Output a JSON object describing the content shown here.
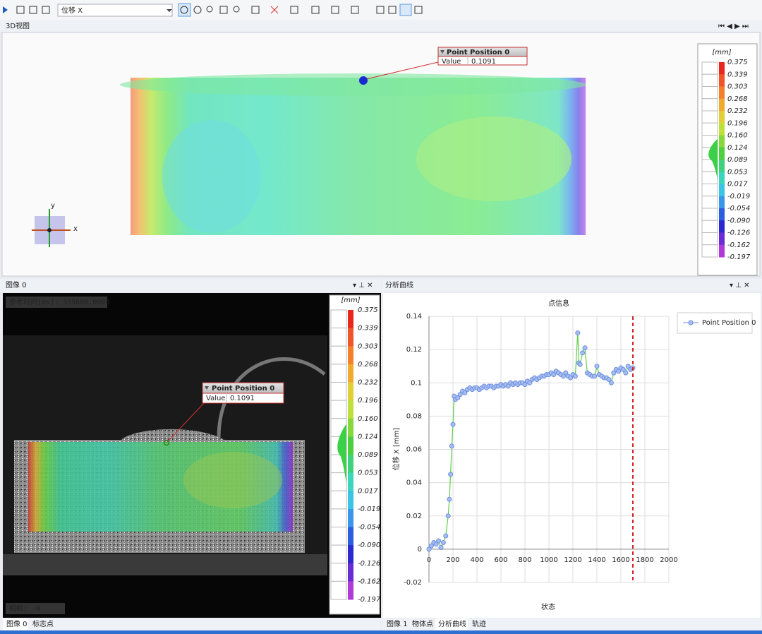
{
  "toolbar": {
    "dropdown": "位移 X"
  },
  "view3d": {
    "tab": "3D视图",
    "axes": {
      "x": "x",
      "y": "y"
    },
    "annotation": {
      "title": "Point Position 0",
      "key": "Value",
      "value": "0.1091"
    },
    "colorbar": {
      "unit": "[mm]",
      "labels": [
        "0.375",
        "0.339",
        "0.303",
        "0.268",
        "0.232",
        "0.196",
        "0.160",
        "0.124",
        "0.089",
        "0.053",
        "0.017",
        "-0.019",
        "-0.054",
        "-0.090",
        "-0.126",
        "-0.162",
        "-0.197"
      ]
    }
  },
  "image_panel": {
    "title": "图像 0",
    "ref_time": "参考时间[ms]: 339800.0000",
    "camera": "相机: -0",
    "annotation": {
      "title": "Point Position 0",
      "key": "Value",
      "value": "0.1091"
    },
    "colorbar": {
      "unit": "[mm]",
      "labels": [
        "0.375",
        "0.339",
        "0.303",
        "0.268",
        "0.232",
        "0.196",
        "0.160",
        "0.124",
        "0.089",
        "0.053",
        "0.017",
        "-0.019",
        "-0.054",
        "-0.090",
        "-0.126",
        "-0.162",
        "-0.197"
      ]
    },
    "tabs": [
      "图像 0",
      "标志点"
    ]
  },
  "curve_panel": {
    "title": "分析曲线",
    "tabs": [
      "图像 1",
      "物体点",
      "分析曲线",
      "轨迹"
    ]
  },
  "chart_data": {
    "type": "line",
    "title": "点信息",
    "x_label": "状态",
    "y_label": "位移 X [mm]",
    "x": [
      0,
      20,
      40,
      60,
      80,
      100,
      120,
      140,
      160,
      170,
      180,
      190,
      200,
      210,
      220,
      240,
      260,
      280,
      300,
      320,
      340,
      360,
      380,
      400,
      420,
      440,
      460,
      480,
      500,
      520,
      540,
      560,
      580,
      600,
      620,
      640,
      660,
      680,
      700,
      720,
      740,
      760,
      780,
      800,
      820,
      840,
      860,
      880,
      900,
      920,
      940,
      960,
      980,
      1000,
      1020,
      1040,
      1060,
      1080,
      1100,
      1120,
      1140,
      1160,
      1180,
      1200,
      1220,
      1240,
      1250,
      1260,
      1280,
      1300,
      1320,
      1340,
      1360,
      1380,
      1400,
      1420,
      1440,
      1460,
      1480,
      1500,
      1520,
      1540,
      1560,
      1580,
      1600,
      1620,
      1640,
      1660,
      1680,
      1700
    ],
    "series": [
      {
        "name": "Point Position 0",
        "color": "#6b8fe0",
        "line_color": "#5ccf45",
        "values": [
          0,
          0.002,
          0.004,
          0.003,
          0.005,
          0.001,
          0.004,
          0.008,
          0.02,
          0.03,
          0.045,
          0.062,
          0.075,
          0.092,
          0.09,
          0.091,
          0.093,
          0.095,
          0.094,
          0.096,
          0.097,
          0.096,
          0.097,
          0.097,
          0.096,
          0.097,
          0.098,
          0.097,
          0.098,
          0.098,
          0.097,
          0.098,
          0.098,
          0.099,
          0.098,
          0.099,
          0.098,
          0.1,
          0.099,
          0.1,
          0.099,
          0.1,
          0.1,
          0.099,
          0.101,
          0.1,
          0.102,
          0.103,
          0.102,
          0.103,
          0.104,
          0.104,
          0.105,
          0.105,
          0.106,
          0.105,
          0.107,
          0.106,
          0.105,
          0.104,
          0.106,
          0.104,
          0.103,
          0.105,
          0.104,
          0.13,
          0.112,
          0.111,
          0.118,
          0.121,
          0.106,
          0.105,
          0.104,
          0.104,
          0.11,
          0.105,
          0.104,
          0.103,
          0.103,
          0.102,
          0.1,
          0.106,
          0.108,
          0.107,
          0.109,
          0.108,
          0.106,
          0.11,
          0.108,
          0.109
        ]
      }
    ],
    "xlim": [
      0,
      2000
    ],
    "ylim": [
      -0.02,
      0.14
    ],
    "xticks": [
      0,
      200,
      400,
      600,
      800,
      1000,
      1200,
      1400,
      1600,
      1800,
      2000
    ],
    "yticks": [
      -0.02,
      0,
      0.02,
      0.04,
      0.06,
      0.08,
      0.1,
      0.12,
      0.14
    ],
    "grid": true,
    "cursor_x": 1700,
    "cursor_color": "#d42020",
    "legend": "right"
  }
}
